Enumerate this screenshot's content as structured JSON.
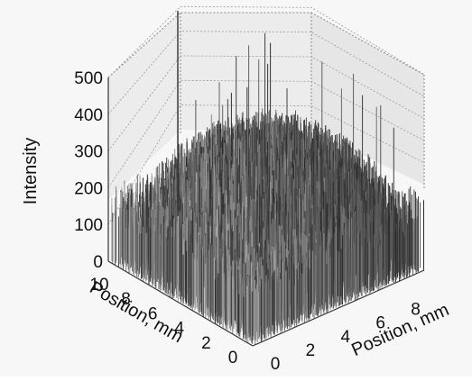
{
  "chart_data": {
    "type": "surface3d",
    "zlabel": "Intensity",
    "xlabel": "Position, mm",
    "ylabel": "Position, mm",
    "z_ticks": [
      "0",
      "100",
      "200",
      "300",
      "400",
      "500"
    ],
    "z_range": [
      0,
      500
    ],
    "x_ticks": [
      "0",
      "2",
      "4",
      "6",
      "8"
    ],
    "x_range": [
      0,
      10
    ],
    "y_ticks": [
      "0",
      "2",
      "4",
      "6",
      "8",
      "10"
    ],
    "y_range": [
      0,
      10
    ],
    "grid": true,
    "profile": {
      "shape": "flat-top dome of noisy vertical spikes",
      "edge_intensity": 200,
      "center_intensity": 370,
      "spike_peak": 500
    }
  }
}
